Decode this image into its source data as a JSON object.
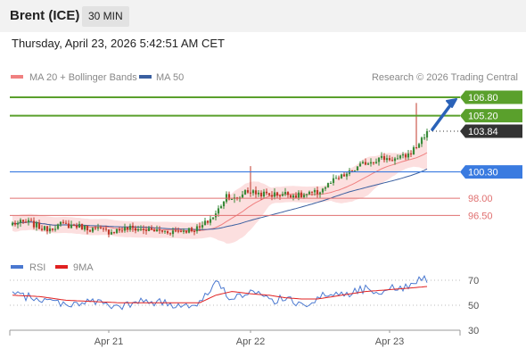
{
  "header": {
    "instrument": "Brent (ICE)",
    "interval": "30 MIN",
    "datetime": "Thursday, April 23, 2026 5:42:51 AM CET"
  },
  "legend": {
    "ma20_label": "MA 20 + Bollinger Bands",
    "ma50_label": "MA 50",
    "copyright": "Research © 2026 Trading Central",
    "rsi_label": "RSI",
    "rsi_ma_label": "9MA"
  },
  "colors": {
    "ma20": "#f08080",
    "ma50": "#3a5fa0",
    "band_fill": "#fcd9d9",
    "up_candle": "#3a8a3a",
    "down_candle": "#c0392b",
    "resistance": "#5aa02c",
    "pivot": "#3a7be0",
    "support": "#e07070",
    "current": "#333333",
    "arrow": "#2a62b8",
    "rsi": "#4a78d0",
    "rsi_ma": "#e02020"
  },
  "chart_data": [
    {
      "type": "candlestick",
      "ylim": [
        93.5,
        107.5
      ],
      "x_ticks": [
        {
          "label": "Apr 21",
          "index": 36
        },
        {
          "label": "Apr 22",
          "index": 89
        },
        {
          "label": "Apr 23",
          "index": 141
        }
      ],
      "price_levels": [
        {
          "label": "106.80",
          "value": 106.8,
          "kind": "resistance"
        },
        {
          "label": "105.20",
          "value": 105.2,
          "kind": "resistance"
        },
        {
          "label": "103.84",
          "value": 103.84,
          "kind": "current"
        },
        {
          "label": "100.30",
          "value": 100.3,
          "kind": "pivot"
        },
        {
          "label": "98.00",
          "value": 98.0,
          "kind": "support"
        },
        {
          "label": "96.50",
          "value": 96.5,
          "kind": "support"
        }
      ],
      "close_anchors": [
        [
          0,
          95.8
        ],
        [
          6,
          95.9
        ],
        [
          12,
          95.3
        ],
        [
          18,
          95.7
        ],
        [
          24,
          95.6
        ],
        [
          30,
          95.3
        ],
        [
          36,
          95.1
        ],
        [
          44,
          95.4
        ],
        [
          52,
          95.2
        ],
        [
          58,
          95.1
        ],
        [
          64,
          95.2
        ],
        [
          70,
          95.4
        ],
        [
          76,
          96.6
        ],
        [
          80,
          98.3
        ],
        [
          84,
          97.8
        ],
        [
          87,
          98.7
        ],
        [
          90,
          98.5
        ],
        [
          96,
          98.3
        ],
        [
          102,
          98.4
        ],
        [
          108,
          98.2
        ],
        [
          114,
          98.5
        ],
        [
          120,
          99.5
        ],
        [
          126,
          100.2
        ],
        [
          132,
          101.1
        ],
        [
          138,
          101.5
        ],
        [
          144,
          101.4
        ],
        [
          148,
          101.8
        ],
        [
          151,
          102.5
        ],
        [
          155,
          103.84
        ]
      ],
      "wick_spikes": [
        {
          "index": 89,
          "high": 100.8
        },
        {
          "index": 151,
          "high": 106.3
        }
      ]
    },
    {
      "type": "line",
      "ylim": [
        20,
        80
      ],
      "y_ticks": [
        70,
        50,
        30
      ],
      "series": [
        {
          "name": "RSI",
          "anchors": [
            [
              0,
              59
            ],
            [
              10,
              55
            ],
            [
              20,
              51
            ],
            [
              30,
              53
            ],
            [
              40,
              48
            ],
            [
              50,
              54
            ],
            [
              60,
              50
            ],
            [
              70,
              52
            ],
            [
              76,
              69
            ],
            [
              80,
              58
            ],
            [
              86,
              57
            ],
            [
              90,
              60
            ],
            [
              96,
              54
            ],
            [
              102,
              55
            ],
            [
              108,
              50
            ],
            [
              114,
              56
            ],
            [
              120,
              59
            ],
            [
              126,
              60
            ],
            [
              132,
              63
            ],
            [
              138,
              62
            ],
            [
              144,
              64
            ],
            [
              148,
              64
            ],
            [
              152,
              72
            ],
            [
              155,
              71
            ]
          ]
        },
        {
          "name": "9MA",
          "anchors": [
            [
              0,
              58
            ],
            [
              10,
              57
            ],
            [
              20,
              54
            ],
            [
              30,
              53
            ],
            [
              40,
              52
            ],
            [
              50,
              52
            ],
            [
              60,
              52
            ],
            [
              70,
              52
            ],
            [
              76,
              58
            ],
            [
              82,
              61
            ],
            [
              90,
              59
            ],
            [
              96,
              58
            ],
            [
              102,
              56
            ],
            [
              108,
              55
            ],
            [
              114,
              55
            ],
            [
              120,
              57
            ],
            [
              126,
              59
            ],
            [
              132,
              61
            ],
            [
              138,
              62
            ],
            [
              144,
              63
            ],
            [
              150,
              64
            ],
            [
              155,
              65
            ]
          ]
        }
      ]
    }
  ]
}
